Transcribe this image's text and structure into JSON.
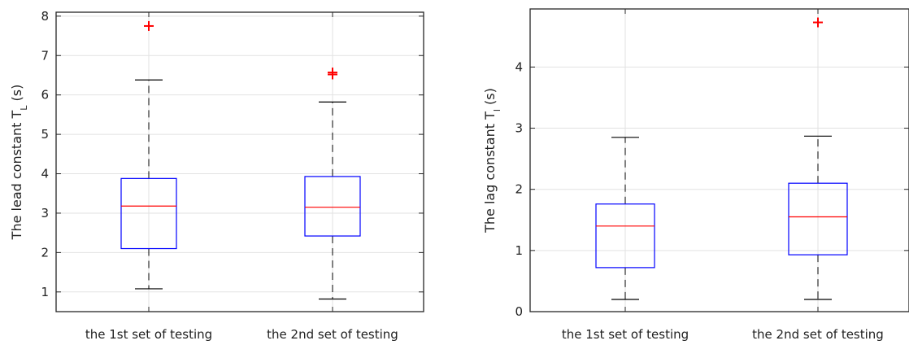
{
  "chart_data": [
    {
      "type": "box",
      "categories": [
        "the 1st set of testing",
        "the 2nd set of testing"
      ],
      "ylabel": {
        "main": "The lead constant T",
        "subscript": "L",
        "suffix": " (s)"
      },
      "ylim": [
        0.5,
        8.1
      ],
      "yticks": [
        1,
        2,
        3,
        4,
        5,
        6,
        7,
        8
      ],
      "grid": true,
      "boxes": [
        {
          "whisker_low": 1.08,
          "q1": 2.1,
          "median": 3.18,
          "q3": 3.88,
          "whisker_high": 6.38,
          "outliers": [
            7.75
          ]
        },
        {
          "whisker_low": 0.82,
          "q1": 2.42,
          "median": 3.15,
          "q3": 3.93,
          "whisker_high": 5.82,
          "outliers": [
            6.52,
            6.57
          ]
        }
      ],
      "colors": {
        "box": "#0000ff",
        "median": "#ff0000",
        "whisker": "#000000",
        "outlier": "#ff0000",
        "grid": "#e2e2e2",
        "axis": "#262626"
      }
    },
    {
      "type": "box",
      "categories": [
        "the 1st set of testing",
        "the 2nd set of testing"
      ],
      "ylabel": {
        "main": "The lag constant T",
        "subscript": "l",
        "suffix": " (s)"
      },
      "ylim": [
        0,
        4.95
      ],
      "yticks": [
        0,
        1,
        2,
        3,
        4
      ],
      "grid": true,
      "boxes": [
        {
          "whisker_low": 0.2,
          "q1": 0.72,
          "median": 1.4,
          "q3": 1.76,
          "whisker_high": 2.85,
          "outliers": []
        },
        {
          "whisker_low": 0.2,
          "q1": 0.93,
          "median": 1.55,
          "q3": 2.1,
          "whisker_high": 2.87,
          "outliers": [
            4.73
          ]
        }
      ],
      "colors": {
        "box": "#0000ff",
        "median": "#ff0000",
        "whisker": "#000000",
        "outlier": "#ff0000",
        "grid": "#e2e2e2",
        "axis": "#262626"
      }
    }
  ]
}
